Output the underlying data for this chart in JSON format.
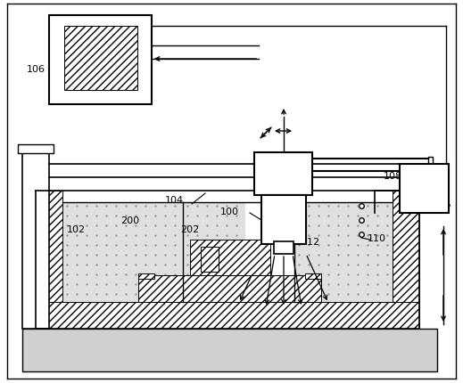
{
  "bg_color": "#ffffff",
  "line_color": "#000000",
  "figsize": [
    5.19,
    4.31
  ],
  "dpi": 100
}
